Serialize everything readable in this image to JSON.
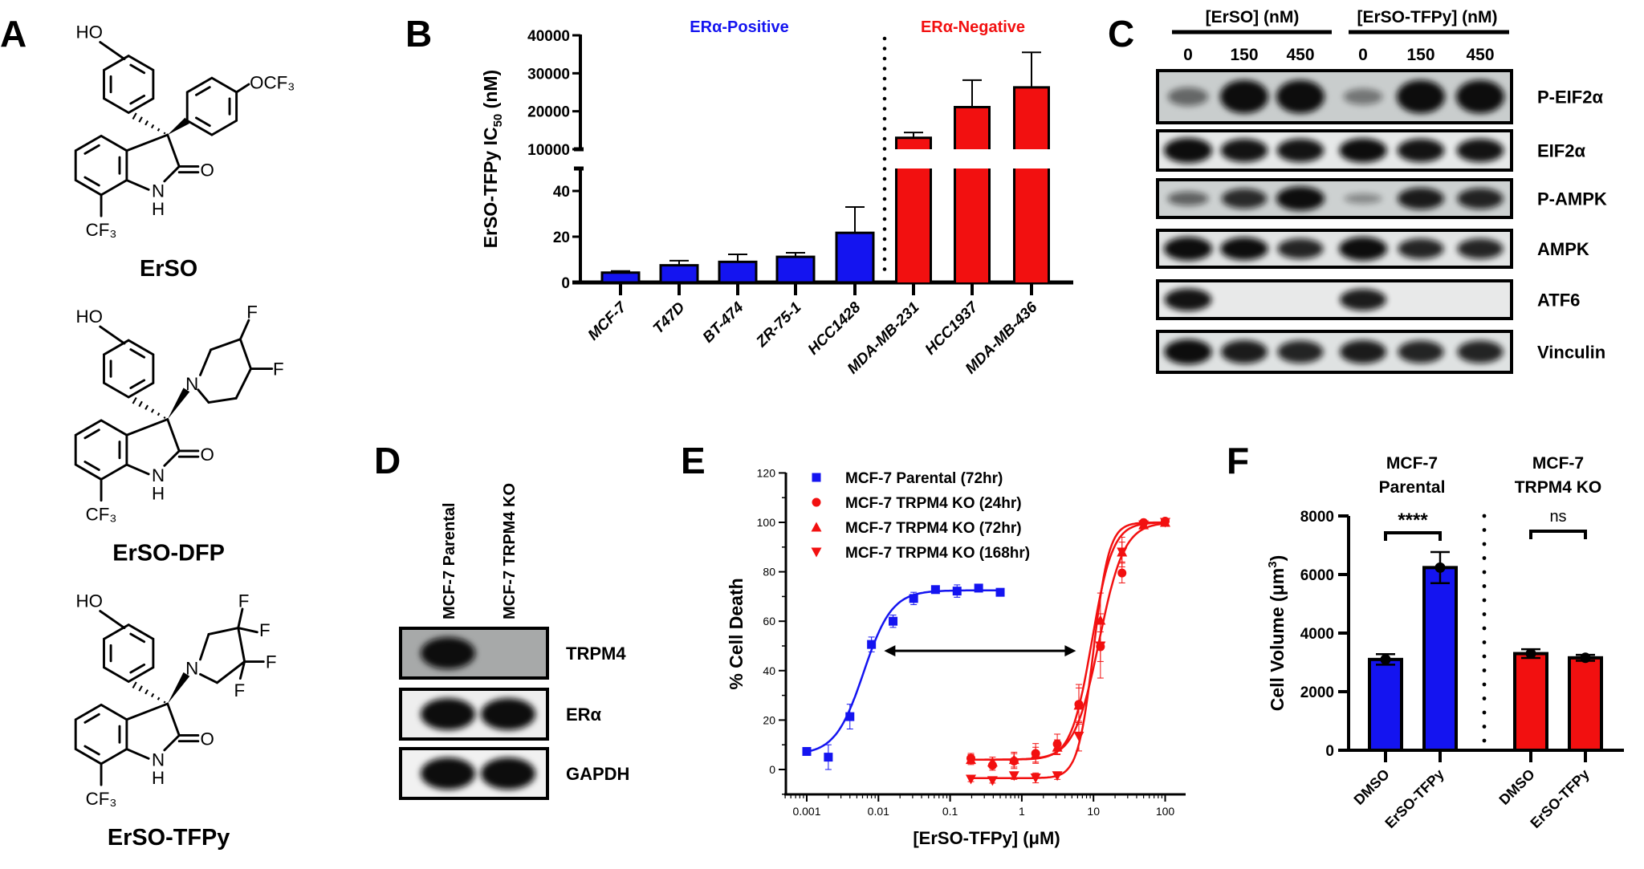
{
  "panel_labels": {
    "a": "A",
    "b": "B",
    "c": "C",
    "d": "D",
    "e": "E",
    "f": "F"
  },
  "panel_a": {
    "compounds": [
      {
        "name": "ErSO",
        "substituent": "OCF₃"
      },
      {
        "name": "ErSO-DFP"
      },
      {
        "name": "ErSO-TFPy"
      }
    ],
    "atoms": {
      "ho": "HO",
      "n": "N",
      "h": "H",
      "o": "O",
      "cf3": "CF₃",
      "f": "F"
    }
  },
  "panel_c": {
    "treatments": [
      {
        "label": "[ErSO] (nM)",
        "doses": [
          "0",
          "150",
          "450"
        ]
      },
      {
        "label": "[ErSO-TFPy] (nM)",
        "doses": [
          "0",
          "150",
          "450"
        ]
      }
    ],
    "blots": [
      {
        "label": "P-EIF2α",
        "band_intensity": [
          0.35,
          1,
          1,
          0.25,
          1,
          1
        ]
      },
      {
        "label": "EIF2α",
        "band_intensity": [
          1,
          0.9,
          0.9,
          0.95,
          0.9,
          0.9
        ]
      },
      {
        "label": "P-AMPK",
        "band_intensity": [
          0.4,
          0.75,
          1,
          0.15,
          0.85,
          0.8
        ]
      },
      {
        "label": "AMPK",
        "band_intensity": [
          1,
          0.95,
          0.8,
          1,
          0.8,
          0.8
        ]
      },
      {
        "label": "ATF6",
        "band_intensity": [
          0.9,
          0,
          0,
          0.85,
          0,
          0
        ]
      },
      {
        "label": "Vinculin",
        "band_intensity": [
          0.95,
          0.85,
          0.8,
          0.85,
          0.8,
          0.8
        ]
      }
    ]
  },
  "panel_d": {
    "lanes": [
      "MCF-7 Parental",
      "MCF-7 TRPM4 KO"
    ],
    "blots": [
      {
        "label": "TRPM4",
        "band_intensity": [
          1,
          0
        ]
      },
      {
        "label": "ERα",
        "band_intensity": [
          1,
          1
        ]
      },
      {
        "label": "GAPDH",
        "band_intensity": [
          1,
          1
        ]
      }
    ]
  },
  "chart_data": [
    {
      "panel": "B",
      "type": "bar",
      "categories": [
        "MCF-7",
        "T47D",
        "BT-474",
        "ZR-75-1",
        "HCC1428",
        "MDA-MB-231",
        "HCC1937",
        "MDA-MB-436"
      ],
      "values": [
        4.3,
        7.5,
        9,
        11.2,
        21.7,
        13000,
        21100,
        26300
      ],
      "error_upper": [
        5,
        9.5,
        12.3,
        13,
        33,
        14400,
        28200,
        35500
      ],
      "groups": [
        {
          "name": "ERα-Positive",
          "members": [
            0,
            1,
            2,
            3,
            4
          ],
          "color": "#1414F0"
        },
        {
          "name": "ERα-Negative",
          "members": [
            5,
            6,
            7
          ],
          "color": "#F21010"
        }
      ],
      "ylabel": {
        "main": "ErSO-TFPy IC",
        "sub": "50",
        "unit": " (nM)"
      },
      "y_segments": [
        {
          "range": [
            0,
            50
          ],
          "ticks": [
            0,
            20,
            40
          ]
        },
        {
          "range": [
            10000,
            40000
          ],
          "ticks": [
            10000,
            20000,
            30000,
            40000
          ]
        }
      ],
      "grid": false
    },
    {
      "panel": "E",
      "type": "scatter",
      "xscale": "log",
      "xlim": [
        0.0005,
        200
      ],
      "ylim": [
        -10,
        120
      ],
      "xticks": [
        "0.001",
        "0.01",
        "0.1",
        "1",
        "10",
        "100"
      ],
      "yticks": [
        0,
        20,
        40,
        60,
        80,
        100,
        120
      ],
      "xlabel": "[ErSO-TFPy] (μM)",
      "ylabel": "% Cell Death",
      "legend": "top-left",
      "grid": false,
      "annotation": {
        "type": "double-arrow",
        "x": [
          0.012,
          5.7
        ],
        "y": 48
      },
      "series": [
        {
          "name": "MCF-7 Parental (72hr)",
          "color": "#1414F0",
          "marker": "square",
          "x": [
            0.001,
            0.002,
            0.004,
            0.008,
            0.016,
            0.031,
            0.0625,
            0.125,
            0.25,
            0.5
          ],
          "y": [
            7.3,
            5,
            21.4,
            50.6,
            60,
            69.2,
            72.8,
            72.2,
            73.4,
            71.7
          ],
          "err": [
            1.5,
            5,
            5,
            3,
            2.5,
            2.5,
            1.5,
            2.5,
            1,
            1
          ],
          "fit": {
            "bottom": 6,
            "top": 72.5,
            "ec50": 0.0062,
            "hill": 2.2
          }
        },
        {
          "name": "MCF-7 TRPM4 KO (24hr)",
          "color": "#F21010",
          "marker": "circle",
          "x": [
            0.195,
            0.39,
            0.78,
            1.56,
            3.125,
            6.25,
            12.5,
            25,
            50,
            100
          ],
          "y": [
            4.5,
            1.7,
            3.4,
            6.5,
            10.3,
            26.4,
            49.7,
            79.5,
            99.9,
            100.5
          ],
          "err": [
            2,
            2,
            3,
            4,
            4,
            8,
            6,
            4,
            1,
            1
          ],
          "fit": {
            "bottom": 4,
            "top": 100,
            "ec50": 12,
            "hill": 2.5
          }
        },
        {
          "name": "MCF-7 TRPM4 KO (72hr)",
          "color": "#F21010",
          "marker": "triangle-up",
          "x": [
            0.195,
            0.39,
            0.78,
            1.56,
            3.125,
            6.25,
            12.5,
            25,
            50,
            100
          ],
          "y": [
            4,
            3,
            4,
            6,
            9,
            26,
            60.4,
            88,
            99,
            100
          ],
          "err": [
            2,
            2,
            3,
            3,
            3,
            7,
            11,
            6,
            1,
            1
          ],
          "fit": {
            "bottom": 4,
            "top": 100,
            "ec50": 9.5,
            "hill": 3
          }
        },
        {
          "name": "MCF-7 TRPM4 KO (168hr)",
          "color": "#F21010",
          "marker": "triangle-down",
          "x": [
            0.195,
            0.39,
            0.78,
            1.56,
            3.125,
            6.25,
            12.5,
            25,
            50,
            100
          ],
          "y": [
            -3.9,
            -4.5,
            -2.5,
            -3.4,
            -2.5,
            13.5,
            50,
            88,
            99,
            100
          ],
          "err": [
            1,
            1,
            1.5,
            2,
            1.5,
            6,
            13,
            4,
            1,
            1
          ],
          "fit": {
            "bottom": -3.5,
            "top": 100,
            "ec50": 10,
            "hill": 4
          }
        }
      ]
    },
    {
      "panel": "F",
      "type": "bar",
      "groups": [
        {
          "title": [
            "MCF-7",
            "Parental"
          ],
          "color": "#1414F0",
          "significance": "****",
          "categories": [
            "DMSO",
            "ErSO-TFPy"
          ],
          "values": [
            3100,
            6237
          ],
          "error": [
            180,
            530
          ]
        },
        {
          "title": [
            "MCF-7",
            "TRPM4 KO"
          ],
          "color": "#F21010",
          "significance": "ns",
          "categories": [
            "DMSO",
            "ErSO-TFPy"
          ],
          "values": [
            3300,
            3156
          ],
          "error": [
            150,
            100
          ]
        }
      ],
      "ylabel": {
        "main": "Cell Volume (μm",
        "sup": "3",
        "end": ")"
      },
      "ylim": [
        0,
        8000
      ],
      "yticks": [
        0,
        2000,
        4000,
        6000,
        8000
      ],
      "grid": false
    }
  ]
}
